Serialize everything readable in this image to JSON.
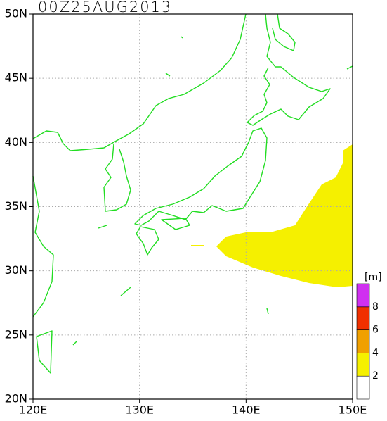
{
  "title": "00Z25AUG2013",
  "map": {
    "lonlim": [
      120,
      150
    ],
    "latlim": [
      20,
      50
    ],
    "grid": true,
    "lon_ticks": [
      {
        "value": 120,
        "label": "120E"
      },
      {
        "value": 130,
        "label": "130E"
      },
      {
        "value": 140,
        "label": "140E"
      },
      {
        "value": 150,
        "label": "150E"
      }
    ],
    "lat_ticks": [
      {
        "value": 20,
        "label": "20N"
      },
      {
        "value": 25,
        "label": "25N"
      },
      {
        "value": 30,
        "label": "30N"
      },
      {
        "value": 35,
        "label": "35N"
      },
      {
        "value": 40,
        "label": "40N"
      },
      {
        "value": 45,
        "label": "45N"
      },
      {
        "value": 50,
        "label": "50N"
      }
    ]
  },
  "colorbar": {
    "unit": "[m]",
    "ticks": [
      2,
      4,
      6,
      8
    ],
    "colors": [
      "#ffffff",
      "#f5f000",
      "#f0a000",
      "#f03000",
      "#d030f0"
    ]
  }
}
